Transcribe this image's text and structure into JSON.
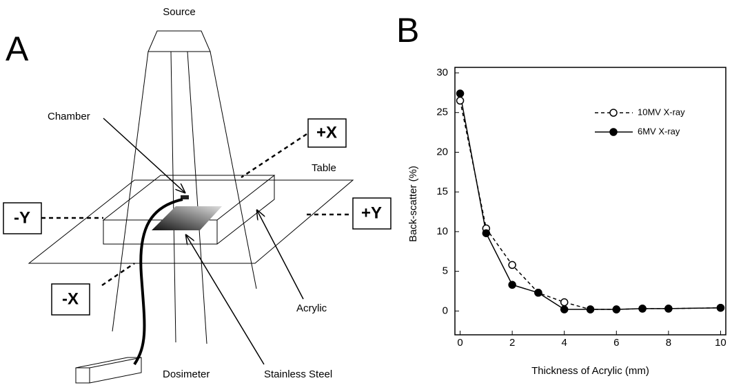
{
  "panel_a": {
    "label": "A",
    "source": "Source",
    "chamber": "Chamber",
    "plus_x": "+X",
    "table": "Table",
    "minus_y": "-Y",
    "plus_y": "+Y",
    "minus_x": "-X",
    "acrylic": "Acrylic",
    "dosimeter": "Dosimeter",
    "stainless_steel": "Stainless Steel"
  },
  "chart_data": {
    "type": "line",
    "panel_label": "B",
    "x_label": "Thickness of Acrylic (mm)",
    "y_label": "Back-scatter (%)",
    "x": [
      0,
      1,
      2,
      3,
      4,
      5,
      6,
      7,
      8,
      10
    ],
    "series": [
      {
        "name": "10MV X-ray",
        "color": "#000000",
        "line_style": "dashed",
        "marker": "open",
        "values": [
          26.5,
          10.4,
          5.8,
          2.3,
          1.1,
          0.2,
          0.2,
          0.3,
          0.3,
          0.4
        ]
      },
      {
        "name": "6MV X-ray",
        "color": "#000000",
        "line_style": "solid",
        "marker": "filled",
        "values": [
          27.4,
          9.8,
          3.3,
          2.3,
          0.2,
          0.2,
          0.2,
          0.3,
          0.3,
          0.4
        ]
      }
    ],
    "xlim": [
      -0.2,
      10.2
    ],
    "ylim": [
      -3,
      30
    ],
    "xticks": [
      0,
      2,
      4,
      6,
      8,
      10
    ],
    "yticks": [
      0,
      5,
      10,
      15,
      20,
      25,
      30
    ],
    "legend": "upper right",
    "grid": false
  }
}
